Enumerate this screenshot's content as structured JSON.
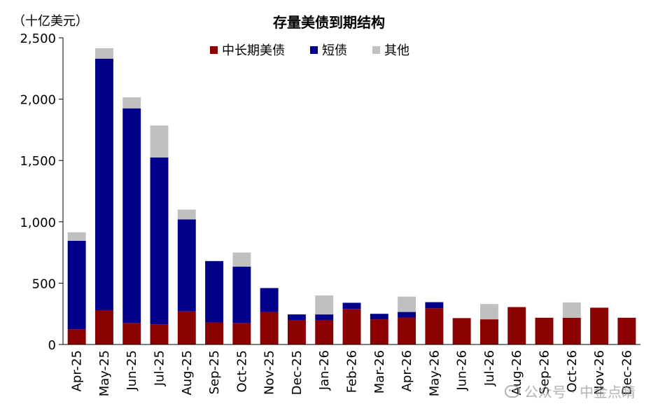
{
  "unit_label": "（十亿美元）",
  "chart_title": "存量美债到期结构",
  "watermark": "公众号 · 中金点睛",
  "colors": {
    "long_term": "#8B0000",
    "short_term": "#00008B",
    "other": "#C0C0C0",
    "axis": "#000000"
  },
  "chart_data": {
    "type": "bar",
    "stacked": true,
    "title": "存量美债到期结构",
    "ylabel": "（十亿美元）",
    "xlabel": "",
    "ylim": [
      0,
      2500
    ],
    "yticks": [
      0,
      500,
      1000,
      1500,
      2000,
      2500
    ],
    "ytick_labels": [
      "0",
      "500",
      "1,000",
      "1,500",
      "2,000",
      "2,500"
    ],
    "legend_position": "top-center",
    "categories": [
      "Apr-25",
      "May-25",
      "Jun-25",
      "Jul-25",
      "Aug-25",
      "Sep-25",
      "Oct-25",
      "Nov-25",
      "Dec-25",
      "Jan-26",
      "Feb-26",
      "Mar-26",
      "Apr-26",
      "May-26",
      "Jun-26",
      "Jul-26",
      "Aug-26",
      "Sep-26",
      "Oct-26",
      "Nov-26",
      "Dec-26"
    ],
    "series": [
      {
        "name": "中长期美债",
        "color": "#8B0000",
        "values": [
          125,
          280,
          175,
          165,
          270,
          180,
          175,
          265,
          200,
          200,
          290,
          205,
          220,
          295,
          215,
          205,
          305,
          218,
          218,
          300,
          218
        ]
      },
      {
        "name": "短债",
        "color": "#00008B",
        "values": [
          720,
          2050,
          1750,
          1360,
          750,
          500,
          460,
          195,
          45,
          45,
          50,
          45,
          45,
          50,
          0,
          0,
          0,
          0,
          0,
          0,
          0
        ]
      },
      {
        "name": "其他",
        "color": "#C0C0C0",
        "values": [
          70,
          85,
          90,
          260,
          80,
          0,
          115,
          0,
          0,
          155,
          0,
          0,
          125,
          0,
          0,
          125,
          0,
          0,
          125,
          0,
          0
        ]
      }
    ]
  }
}
